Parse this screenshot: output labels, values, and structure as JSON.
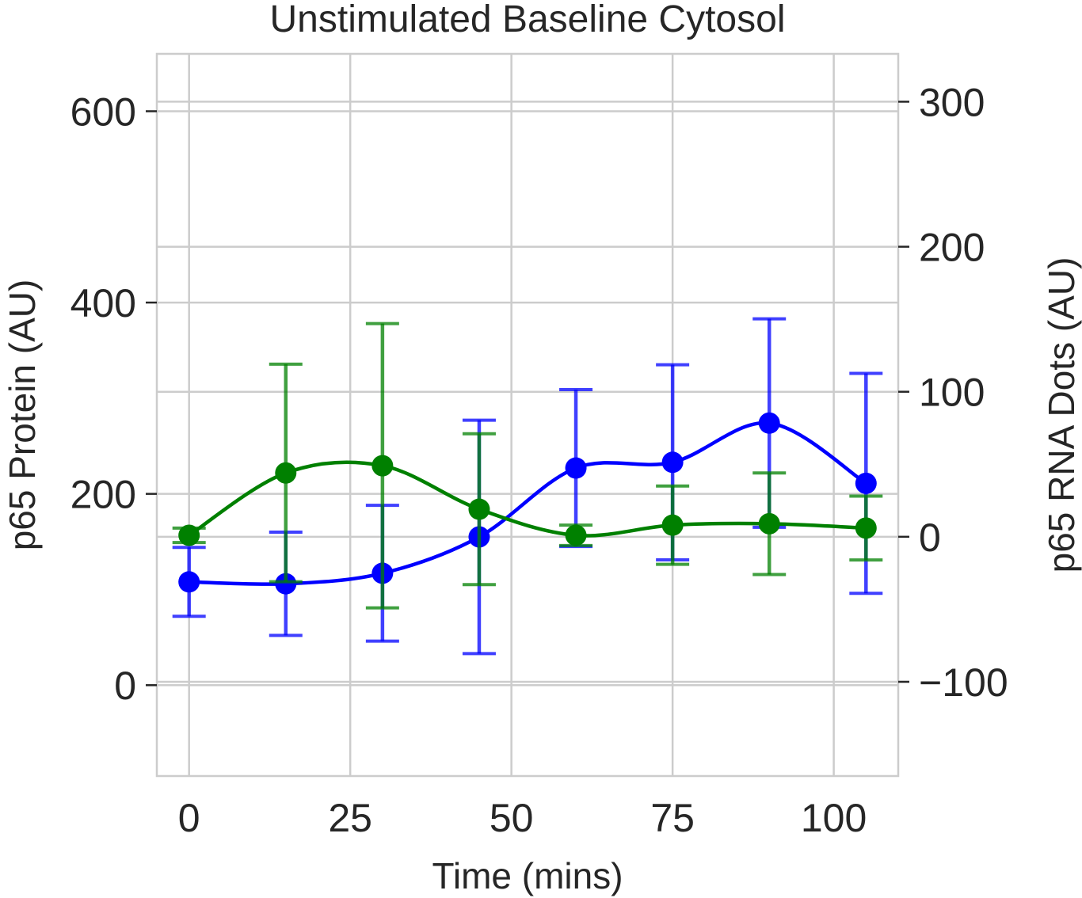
{
  "chart_data": {
    "type": "line",
    "title": "Unstimulated Baseline Cytosol",
    "xlabel": "Time (mins)",
    "ylabel_left": "p65 Protein (AU)",
    "ylabel_right": "p65 RNA Dots (AU)",
    "x": [
      0,
      15,
      30,
      45,
      60,
      75,
      90,
      105
    ],
    "xlim": [
      -5,
      110
    ],
    "ylim_left": [
      -95,
      660
    ],
    "ylim_right": [
      -165,
      333
    ],
    "xticks": [
      0,
      25,
      50,
      75,
      100
    ],
    "yticks_left": [
      0,
      200,
      400,
      600
    ],
    "yticks_right": [
      -100,
      0,
      100,
      200,
      300
    ],
    "grid": true,
    "colors": {
      "left_axis_label": "#0000ff",
      "right_axis_label": "#008000",
      "grid": "#cccccc",
      "frame": "#cccccc"
    },
    "series": [
      {
        "axis": "left",
        "color": "#0000ff",
        "values": [
          108,
          106,
          117,
          155,
          227,
          233,
          274,
          211
        ],
        "err": [
          36,
          54,
          71,
          122,
          82,
          102,
          109,
          115
        ]
      },
      {
        "axis": "right",
        "color": "#008000",
        "values": [
          1,
          44,
          49,
          19,
          1,
          8,
          9,
          6
        ],
        "err": [
          5,
          75,
          98,
          52,
          7,
          27,
          35,
          22
        ]
      }
    ]
  }
}
